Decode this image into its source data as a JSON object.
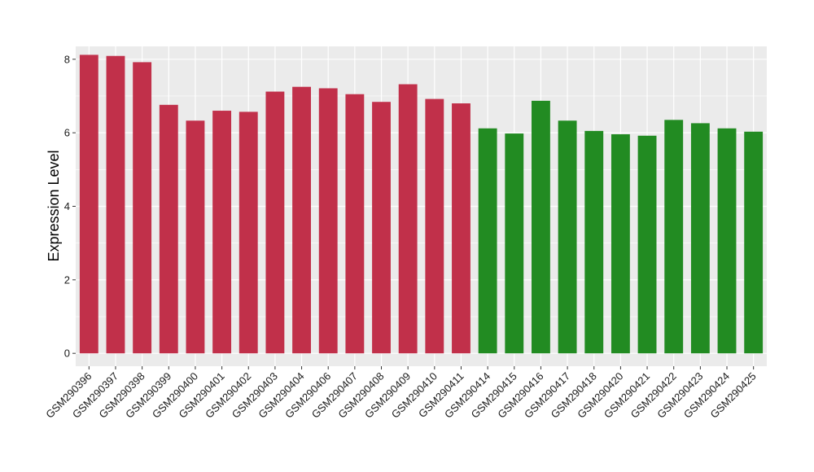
{
  "chart_data": {
    "type": "bar",
    "title": "",
    "xlabel": "",
    "ylabel": "Expression Level",
    "ylim": [
      -0.35,
      8.35
    ],
    "yticks": [
      0,
      2,
      4,
      6,
      8
    ],
    "grid": true,
    "categories": [
      "GSM290396",
      "GSM290397",
      "GSM290398",
      "GSM290399",
      "GSM290400",
      "GSM290401",
      "GSM290402",
      "GSM290403",
      "GSM290404",
      "GSM290406",
      "GSM290407",
      "GSM290408",
      "GSM290409",
      "GSM290410",
      "GSM290411",
      "GSM290414",
      "GSM290415",
      "GSM290416",
      "GSM290417",
      "GSM290418",
      "GSM290420",
      "GSM290421",
      "GSM290422",
      "GSM290423",
      "GSM290424",
      "GSM290425"
    ],
    "values": [
      8.12,
      8.09,
      7.92,
      6.76,
      6.33,
      6.6,
      6.57,
      7.12,
      7.25,
      7.21,
      7.05,
      6.84,
      7.32,
      6.92,
      6.8,
      6.12,
      5.98,
      6.87,
      6.33,
      6.05,
      5.96,
      5.92,
      6.35,
      6.26,
      6.12,
      6.03
    ],
    "bar_colors": [
      "#c1304a",
      "#c1304a",
      "#c1304a",
      "#c1304a",
      "#c1304a",
      "#c1304a",
      "#c1304a",
      "#c1304a",
      "#c1304a",
      "#c1304a",
      "#c1304a",
      "#c1304a",
      "#c1304a",
      "#c1304a",
      "#c1304a",
      "#228b22",
      "#228b22",
      "#228b22",
      "#228b22",
      "#228b22",
      "#228b22",
      "#228b22",
      "#228b22",
      "#228b22",
      "#228b22",
      "#228b22"
    ],
    "panel_color": "#ebebeb",
    "gridline_color": "#ffffff"
  }
}
